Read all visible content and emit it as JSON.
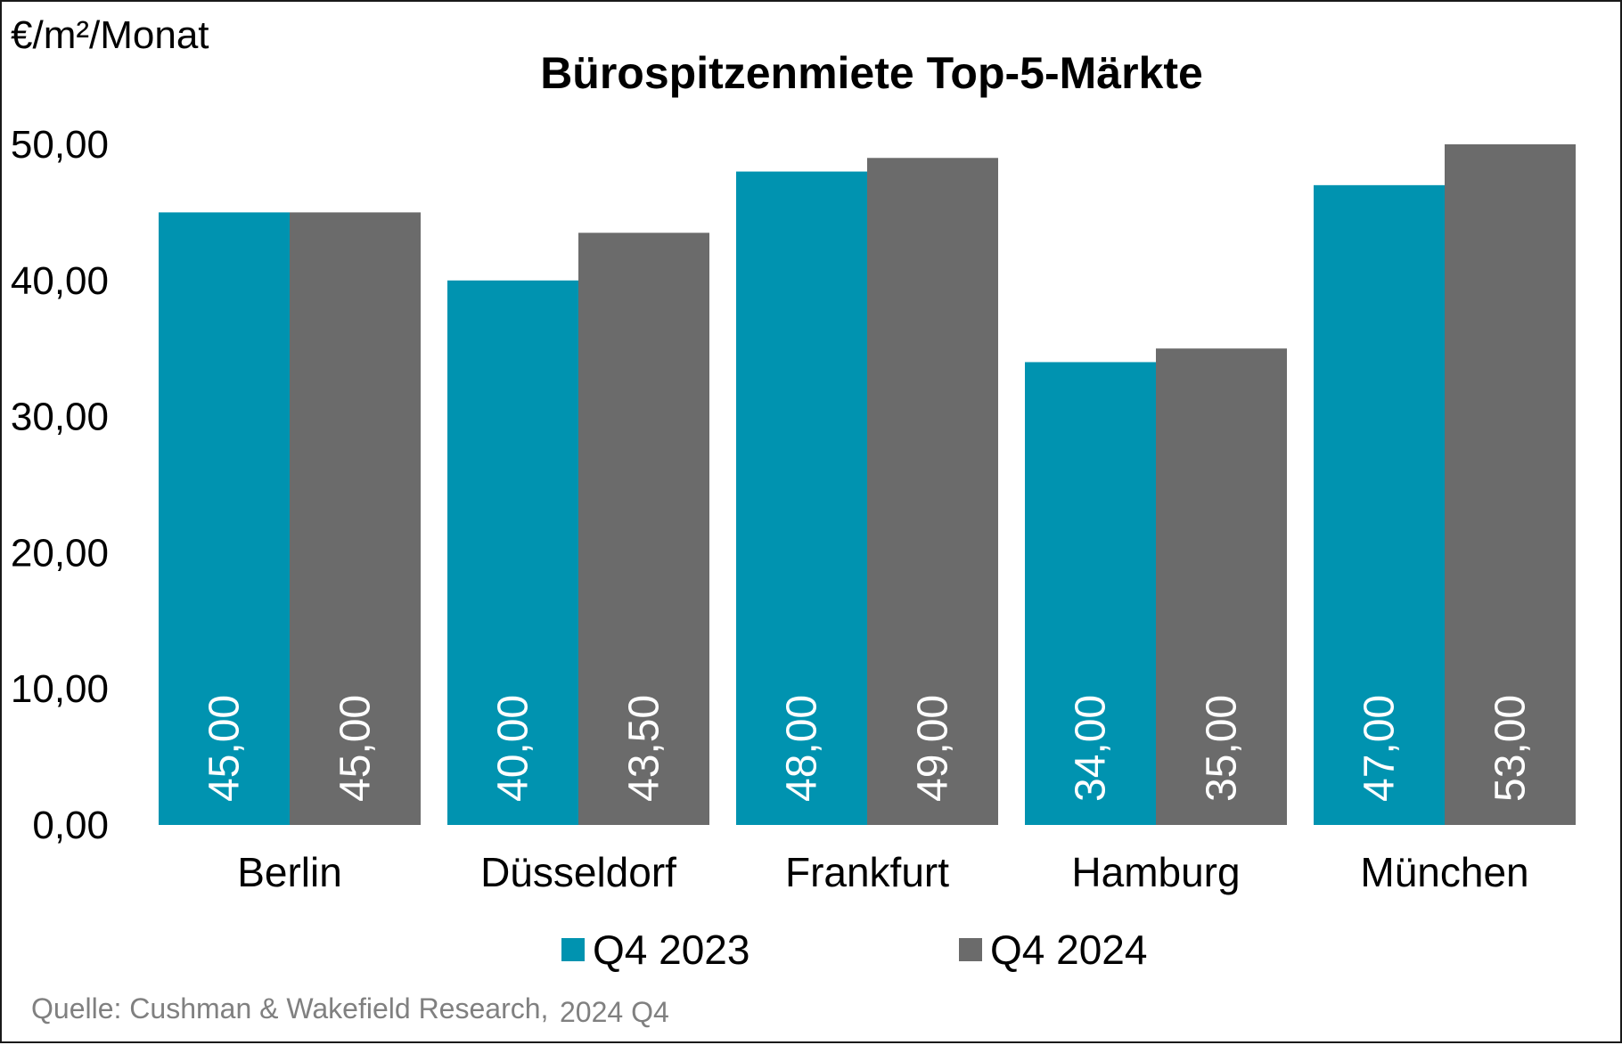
{
  "chart_data": {
    "type": "bar",
    "title": "Bürospitzenmiete Top-5-Märkte",
    "unit_label": "€/m²/Monat",
    "ylim": [
      0,
      50
    ],
    "yticks": [
      "0,00",
      "10,00",
      "20,00",
      "30,00",
      "40,00",
      "50,00"
    ],
    "grid": false,
    "legend_position": "bottom",
    "categories": [
      "Berlin",
      "Düsseldorf",
      "Frankfurt",
      "Hamburg",
      "München"
    ],
    "series": [
      {
        "name": "Q4 2023",
        "color": "#0093b0",
        "values": [
          45.0,
          40.0,
          48.0,
          34.0,
          47.0
        ],
        "labels": [
          "45,00",
          "40,00",
          "48,00",
          "34,00",
          "47,00"
        ]
      },
      {
        "name": "Q4 2024",
        "color": "#6b6b6b",
        "values": [
          45.0,
          43.5,
          49.0,
          35.0,
          53.0
        ],
        "labels": [
          "45,00",
          "43,50",
          "49,00",
          "35,00",
          "53,00"
        ]
      }
    ],
    "source": "Quelle: Cushman & Wakefield Research,",
    "source_period": "2024 Q4"
  }
}
